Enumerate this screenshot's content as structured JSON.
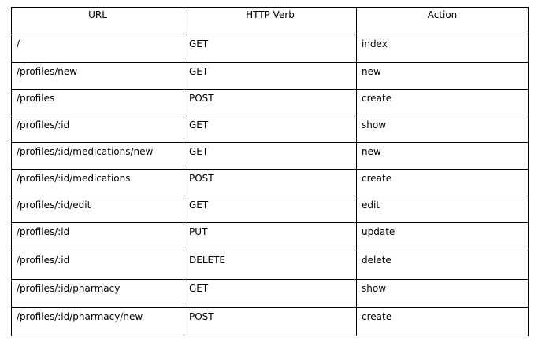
{
  "table": {
    "headers": {
      "url": "URL",
      "verb": "HTTP Verb",
      "action": "Action"
    },
    "rows": [
      {
        "url": "/",
        "verb": "GET",
        "action": "index"
      },
      {
        "url": "/profiles/new",
        "verb": "GET",
        "action": "new"
      },
      {
        "url": "/profiles",
        "verb": "POST",
        "action": "create"
      },
      {
        "url": "/profiles/:id",
        "verb": "GET",
        "action": "show"
      },
      {
        "url": "/profiles/:id/medications/new",
        "verb": "GET",
        "action": "new"
      },
      {
        "url": "/profiles/:id/medications",
        "verb": "POST",
        "action": "create"
      },
      {
        "url": "/profiles/:id/edit",
        "verb": "GET",
        "action": "edit"
      },
      {
        "url": "/profiles/:id",
        "verb": "PUT",
        "action": "update"
      },
      {
        "url": "/profiles/:id",
        "verb": "DELETE",
        "action": "delete"
      },
      {
        "url": "/profiles/:id/pharmacy",
        "verb": "GET",
        "action": "show"
      },
      {
        "url": "/profiles/:id/pharmacy/new",
        "verb": "POST",
        "action": "create"
      }
    ]
  }
}
